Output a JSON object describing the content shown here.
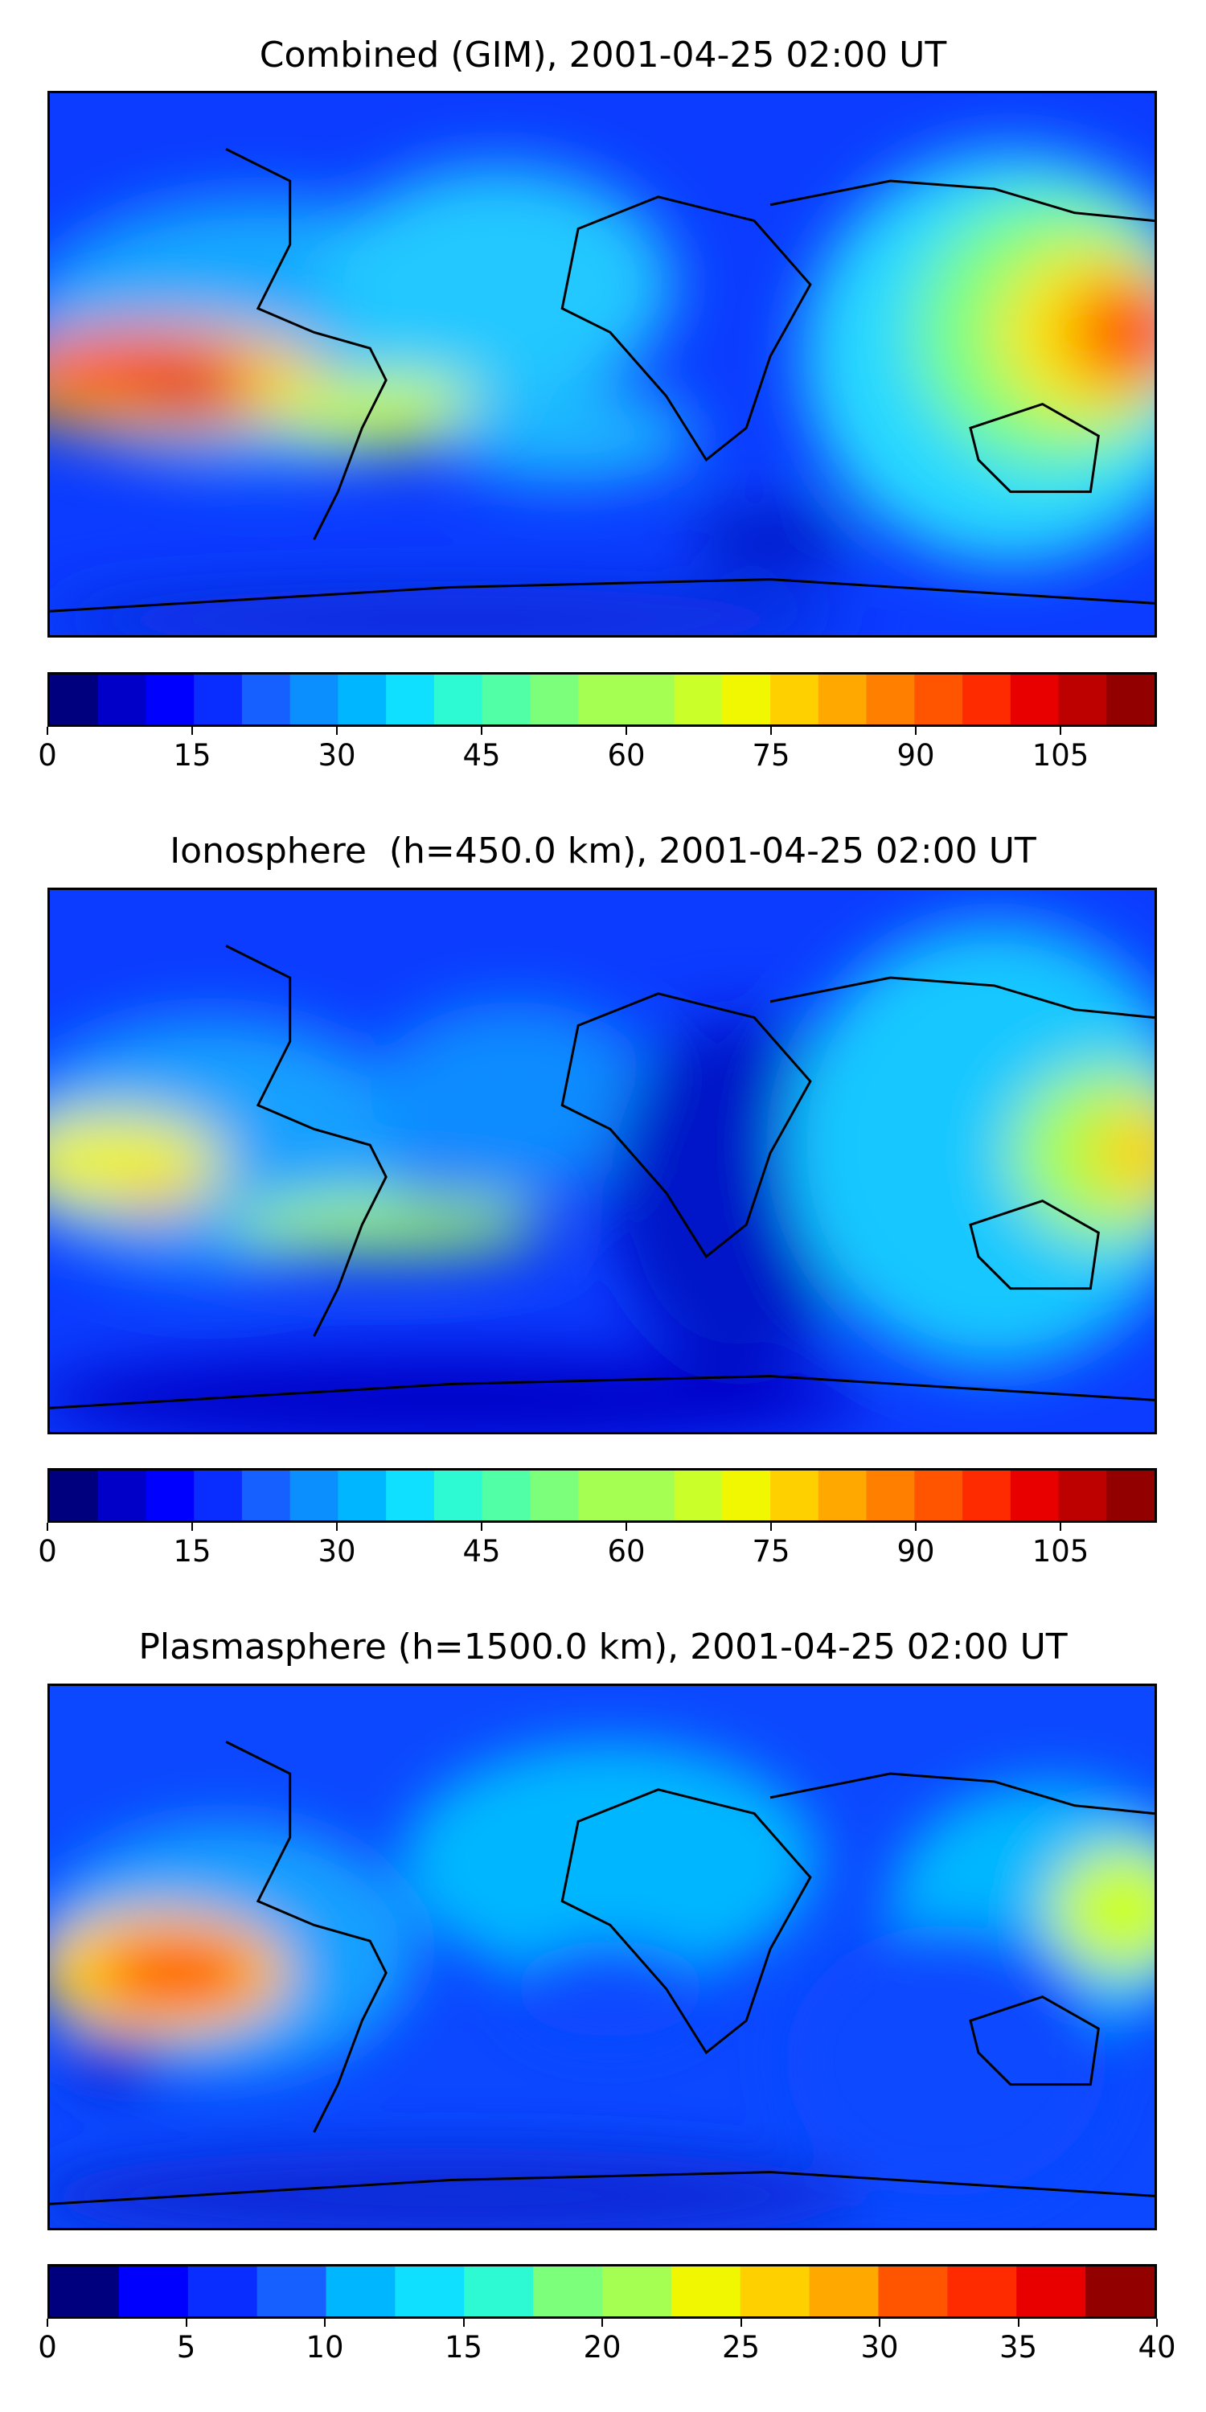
{
  "panels": [
    {
      "title": "Combined (GIM), 2001-04-25 02:00 UT",
      "colorbar": {
        "min": 0,
        "max": 115,
        "levels": 23,
        "ticks": [
          "0",
          "15",
          "30",
          "45",
          "60",
          "75",
          "90",
          "105"
        ],
        "tick_values": [
          0,
          15,
          30,
          45,
          60,
          75,
          90,
          105
        ]
      }
    },
    {
      "title": "Ionosphere  (h=450.0 km), 2001-04-25 02:00 UT",
      "colorbar": {
        "min": 0,
        "max": 115,
        "levels": 23,
        "ticks": [
          "0",
          "15",
          "30",
          "45",
          "60",
          "75",
          "90",
          "105"
        ],
        "tick_values": [
          0,
          15,
          30,
          45,
          60,
          75,
          90,
          105
        ]
      }
    },
    {
      "title": "Plasmasphere (h=1500.0 km), 2001-04-25 02:00 UT",
      "colorbar": {
        "min": 0,
        "max": 40,
        "levels": 16,
        "ticks": [
          "0",
          "5",
          "10",
          "15",
          "20",
          "25",
          "30",
          "35",
          "40"
        ],
        "tick_values": [
          0,
          5,
          10,
          15,
          20,
          25,
          30,
          35,
          40
        ]
      }
    }
  ],
  "colormap": [
    "#00007f",
    "#0000c8",
    "#0000ff",
    "#0a2dff",
    "#1560ff",
    "#0b8fff",
    "#00b7ff",
    "#0fe0ff",
    "#2dfad2",
    "#50ffa6",
    "#7cff7b",
    "#a4ff52",
    "#cbff2a",
    "#f0f700",
    "#ffd000",
    "#ffa800",
    "#ff7f00",
    "#ff5500",
    "#ff2b00",
    "#e80000",
    "#bd0000",
    "#920000"
  ]
}
